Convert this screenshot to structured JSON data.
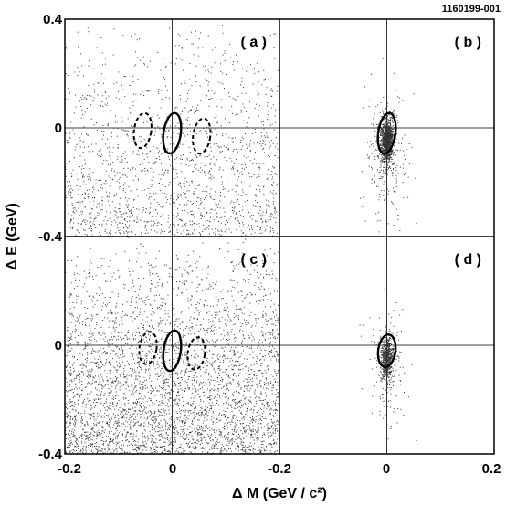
{
  "figure_id": "1160199-001",
  "chart_data": {
    "type": "scatter",
    "layout": "2x2 panels",
    "xlabel": "Δ M (GeV / c²)",
    "ylabel": "Δ E (GeV)",
    "xlim": [
      -0.2,
      0.2
    ],
    "ylim": [
      -0.4,
      0.4
    ],
    "x_tick_labels": [
      "-0.2",
      "0",
      "-0.2",
      "0",
      "0.2"
    ],
    "y_tick_labels": [
      "0.4",
      "0",
      "-0.4",
      "0",
      "-0.4"
    ],
    "grid": false,
    "panels": [
      {
        "label": "( a )",
        "row": 0,
        "col": 0,
        "points": 1800,
        "distribution": "diffuse background, denser toward lower ΔE",
        "signal_region": {
          "cx": 0.0,
          "cy": -0.02,
          "rx": 0.016,
          "ry": 0.075
        },
        "sidebands": [
          {
            "cx": -0.055,
            "cy": -0.01,
            "rx": 0.016,
            "ry": 0.065
          },
          {
            "cx": 0.055,
            "cy": -0.03,
            "rx": 0.016,
            "ry": 0.065
          }
        ]
      },
      {
        "label": "( b )",
        "row": 0,
        "col": 1,
        "points": 1400,
        "distribution": "concentrated near origin with tail to lower ΔE",
        "signal_region": {
          "cx": 0.0,
          "cy": -0.02,
          "rx": 0.016,
          "ry": 0.075
        },
        "sidebands": []
      },
      {
        "label": "( c )",
        "row": 1,
        "col": 0,
        "points": 4200,
        "distribution": "dense background, increasing toward lower ΔE",
        "signal_region": {
          "cx": 0.0,
          "cy": -0.02,
          "rx": 0.016,
          "ry": 0.075
        },
        "sidebands": [
          {
            "cx": -0.045,
            "cy": -0.01,
            "rx": 0.016,
            "ry": 0.06
          },
          {
            "cx": 0.045,
            "cy": -0.03,
            "rx": 0.016,
            "ry": 0.06
          }
        ]
      },
      {
        "label": "( d )",
        "row": 1,
        "col": 1,
        "points": 800,
        "distribution": "tight cluster near origin",
        "signal_region": {
          "cx": 0.0,
          "cy": -0.02,
          "rx": 0.016,
          "ry": 0.06
        },
        "sidebands": []
      }
    ]
  }
}
